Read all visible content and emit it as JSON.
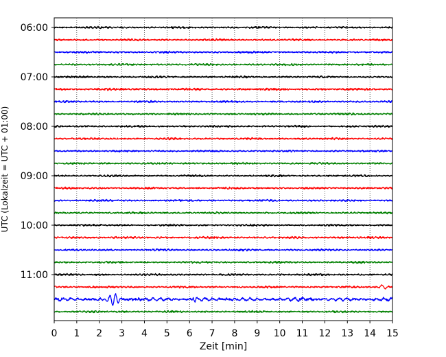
{
  "chart_data": {
    "type": "line",
    "title": "",
    "xlabel": "Zeit  [min]",
    "ylabel": "UTC (Lokalzeit = UTC + 01:00)",
    "xlim": [
      0,
      15
    ],
    "x_ticks": [
      "0",
      "1",
      "2",
      "3",
      "4",
      "5",
      "6",
      "7",
      "8",
      "9",
      "10",
      "11",
      "12",
      "13",
      "14",
      "15"
    ],
    "y_ticks": [
      "06:00",
      "07:00",
      "08:00",
      "09:00",
      "10:00",
      "11:00"
    ],
    "grid": "vertical dotted lines at each minute",
    "trace_interval_minutes": 15,
    "trace_colors_cycle": [
      "#000000",
      "#ff0000",
      "#0000ff",
      "#008000"
    ],
    "series": [
      {
        "start": "06:00",
        "color": "#000000",
        "amplitude": 1
      },
      {
        "start": "06:15",
        "color": "#ff0000",
        "amplitude": 1
      },
      {
        "start": "06:30",
        "color": "#0000ff",
        "amplitude": 1
      },
      {
        "start": "06:45",
        "color": "#008000",
        "amplitude": 1
      },
      {
        "start": "07:00",
        "color": "#000000",
        "amplitude": 1
      },
      {
        "start": "07:15",
        "color": "#ff0000",
        "amplitude": 1.2
      },
      {
        "start": "07:30",
        "color": "#0000ff",
        "amplitude": 1
      },
      {
        "start": "07:45",
        "color": "#008000",
        "amplitude": 1
      },
      {
        "start": "08:00",
        "color": "#000000",
        "amplitude": 1
      },
      {
        "start": "08:15",
        "color": "#ff0000",
        "amplitude": 1
      },
      {
        "start": "08:30",
        "color": "#0000ff",
        "amplitude": 1
      },
      {
        "start": "08:45",
        "color": "#008000",
        "amplitude": 1
      },
      {
        "start": "09:00",
        "color": "#000000",
        "amplitude": 1
      },
      {
        "start": "09:15",
        "color": "#ff0000",
        "amplitude": 1
      },
      {
        "start": "09:30",
        "color": "#0000ff",
        "amplitude": 1
      },
      {
        "start": "09:45",
        "color": "#008000",
        "amplitude": 1
      },
      {
        "start": "10:00",
        "color": "#000000",
        "amplitude": 1
      },
      {
        "start": "10:15",
        "color": "#ff0000",
        "amplitude": 1.1
      },
      {
        "start": "10:30",
        "color": "#0000ff",
        "amplitude": 1
      },
      {
        "start": "10:45",
        "color": "#008000",
        "amplitude": 1
      },
      {
        "start": "11:00",
        "color": "#000000",
        "amplitude": 1
      },
      {
        "start": "11:15",
        "color": "#ff0000",
        "amplitude": 1,
        "event_near_min": 14.6
      },
      {
        "start": "11:30",
        "color": "#0000ff",
        "amplitude": 2,
        "event_near_min": 2.6
      },
      {
        "start": "11:45",
        "color": "#008000",
        "amplitude": 1
      }
    ]
  }
}
